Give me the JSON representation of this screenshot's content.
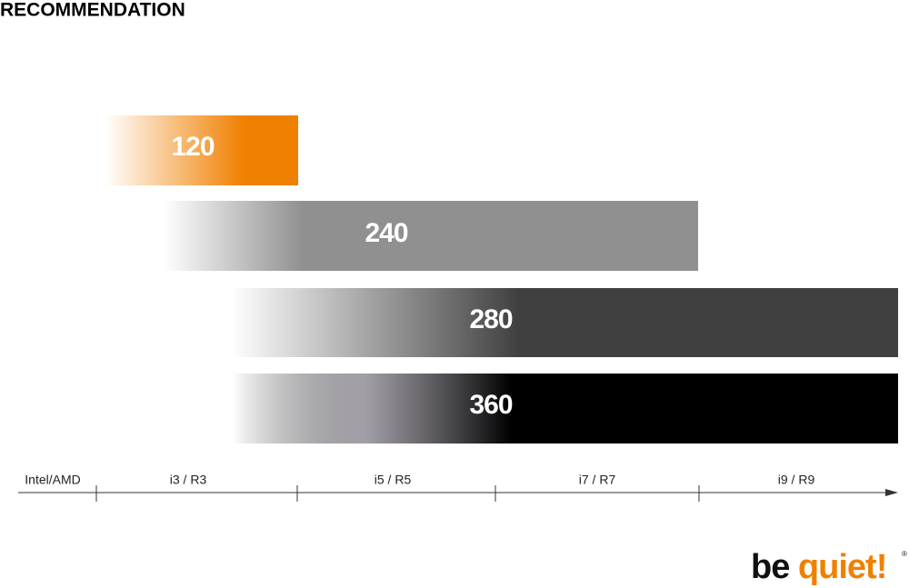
{
  "title": "RECOMMENDATION",
  "bars": [
    {
      "label": "120"
    },
    {
      "label": "240"
    },
    {
      "label": "280"
    },
    {
      "label": "360"
    }
  ],
  "axis": {
    "labels": [
      "Intel/AMD",
      "i3 / R3",
      "i5 / R5",
      "i7 / R7",
      "i9 / R9"
    ]
  },
  "logo": {
    "parts": [
      "be",
      "quiet!"
    ],
    "mark": "®"
  }
}
